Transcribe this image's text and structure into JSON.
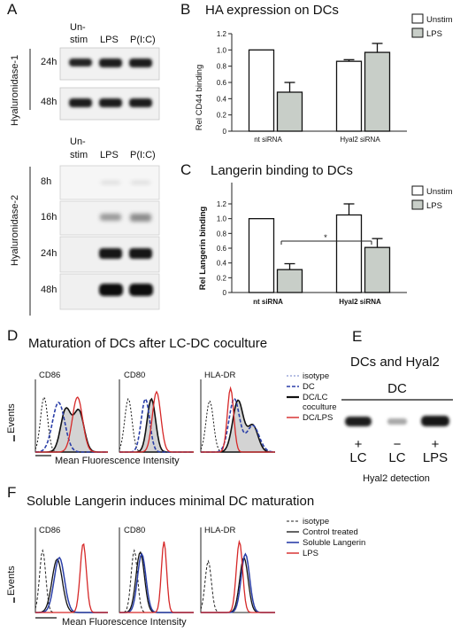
{
  "panels": {
    "A": {
      "label": "A",
      "hyal1": {
        "title": "Hyaluronidase-1",
        "col_labels": [
          "Un-",
          "stim",
          "LPS",
          "P(I:C)"
        ],
        "times": [
          "24h",
          "48h"
        ]
      },
      "hyal2": {
        "title": "Hyaluronidase-2",
        "col_labels": [
          "Un-",
          "stim",
          "LPS",
          "P(I:C)"
        ],
        "times": [
          "8h",
          "16h",
          "24h",
          "48h"
        ]
      }
    },
    "B": {
      "label": "B",
      "chart_data": {
        "type": "bar",
        "title": "HA expression on DCs",
        "xlabel": "",
        "ylabel": "Rel CD44 binding",
        "categories": [
          "nt siRNA",
          "Hyal2 siRNA"
        ],
        "series": [
          {
            "name": "Unstim",
            "values": [
              1.0,
              0.86
            ],
            "errors": [
              0,
              0.02
            ],
            "color": "#ffffff"
          },
          {
            "name": "LPS",
            "values": [
              0.48,
              0.97
            ],
            "errors": [
              0.12,
              0.11
            ],
            "color": "#c8cec8"
          }
        ],
        "ylim": [
          0,
          1.2
        ],
        "yticks": [
          "0",
          "0.2",
          "0.4",
          "0.6",
          "0.8",
          "1.0",
          "1.2"
        ],
        "legend": "top-right"
      }
    },
    "C": {
      "label": "C",
      "chart_data": {
        "type": "bar",
        "title": "Langerin binding to DCs",
        "xlabel": "",
        "ylabel": "Rel Langerin binding",
        "categories": [
          "nt siRNA",
          "Hyal2 siRNA"
        ],
        "series": [
          {
            "name": "Unstim",
            "values": [
              1.0,
              1.05
            ],
            "errors": [
              0,
              0.15
            ],
            "color": "#ffffff"
          },
          {
            "name": "LPS",
            "values": [
              0.31,
              0.61
            ],
            "errors": [
              0.08,
              0.12
            ],
            "color": "#c8cec8"
          }
        ],
        "ylim": [
          0,
          1.2
        ],
        "yticks": [
          "0",
          "0.2",
          "0.4",
          "0.6",
          "0.8",
          "1.0",
          "1.2"
        ],
        "significance": "*",
        "legend": "top-right"
      }
    },
    "D": {
      "label": "D",
      "title": "Maturation of DCs after LC-DC coculture",
      "markers": [
        "CD86",
        "CD80",
        "HLA-DR"
      ],
      "ylabel": "Events",
      "xlabel": "Mean Fluorescence Intensity",
      "legend": [
        "isotype",
        "DC",
        "DC/LC",
        "coculture",
        "DC/LPS"
      ]
    },
    "E": {
      "label": "E",
      "title": "DCs and Hyal2",
      "group": "DC",
      "signs": [
        "+",
        "−",
        "+"
      ],
      "lanes": [
        "LC",
        "LC",
        "LPS"
      ],
      "caption": "Hyal2 detection"
    },
    "F": {
      "label": "F",
      "title": "Soluble Langerin induces minimal DC maturation",
      "markers": [
        "CD86",
        "CD80",
        "HLA-DR"
      ],
      "ylabel": "Events",
      "xlabel": "Mean Fluorescence Intensity",
      "legend": [
        "isotype",
        "Control treated",
        "Soluble Langerin",
        "LPS"
      ]
    }
  },
  "colors": {
    "bar_lps": "#c8cec8",
    "dc_blue": "#2b3fa8",
    "lps_red": "#d62828",
    "coculture_gray": "#d3d3d3"
  }
}
